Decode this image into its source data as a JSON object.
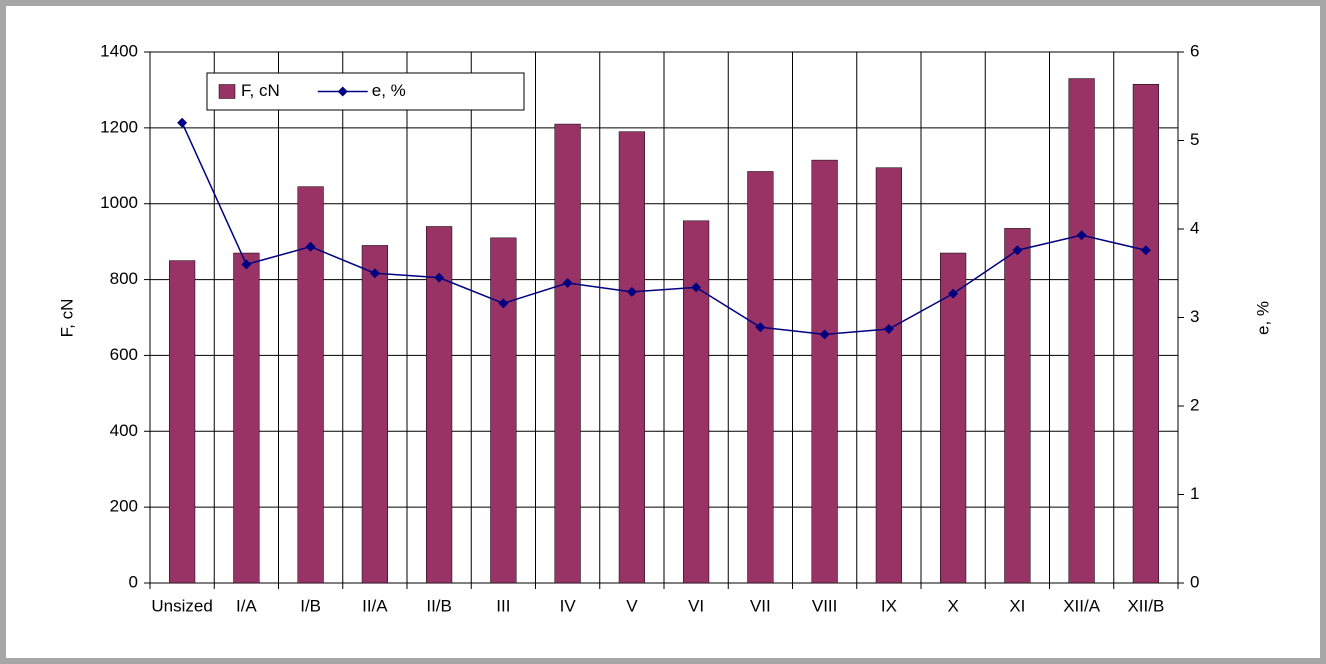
{
  "chart_data": {
    "type": "bar",
    "categories": [
      "Unsized",
      "I/A",
      "I/B",
      "II/A",
      "II/B",
      "III",
      "IV",
      "V",
      "VI",
      "VII",
      "VIII",
      "IX",
      "X",
      "XI",
      "XII/A",
      "XII/B"
    ],
    "series": [
      {
        "name": "F, cN",
        "type": "bar",
        "color": "#993366",
        "values": [
          850,
          870,
          1045,
          890,
          940,
          910,
          1210,
          1190,
          955,
          1085,
          1115,
          1095,
          870,
          935,
          1330,
          1315
        ]
      },
      {
        "name": "e, %",
        "type": "line",
        "axis": "y2",
        "color": "#000080",
        "values": [
          5.2,
          3.6,
          3.8,
          3.5,
          3.45,
          3.16,
          3.39,
          3.29,
          3.34,
          2.89,
          2.81,
          2.87,
          3.27,
          3.76,
          3.93,
          3.76
        ]
      }
    ],
    "ylabel": "F, cN",
    "y2label": "e, %",
    "ylim": [
      0,
      1400
    ],
    "yticks": [
      0,
      200,
      400,
      600,
      800,
      1000,
      1200,
      1400
    ],
    "y2lim": [
      0,
      6
    ],
    "y2ticks": [
      0,
      1,
      2,
      3,
      4,
      5,
      6
    ],
    "grid": true
  }
}
